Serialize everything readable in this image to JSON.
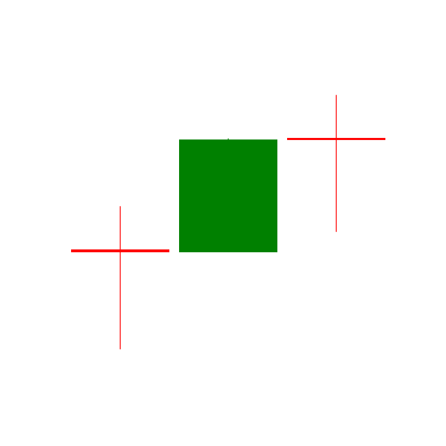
{
  "chart_data": {
    "type": "candlestick",
    "title": "",
    "xlabel": "",
    "ylabel": "",
    "grid": false,
    "legend": "none",
    "ylim": [
      0,
      100
    ],
    "candles": [
      {
        "open": 42.6,
        "high": 54.7,
        "low": 14.6,
        "close": 41.8
      },
      {
        "open": 41.8,
        "high": 73.7,
        "low": 41.8,
        "close": 73.4
      },
      {
        "open": 73.8,
        "high": 85.9,
        "low": 47.5,
        "close": 73.3
      }
    ],
    "colors": {
      "up": "#008000",
      "down": "#ff0000",
      "background": "#ffffff"
    }
  }
}
